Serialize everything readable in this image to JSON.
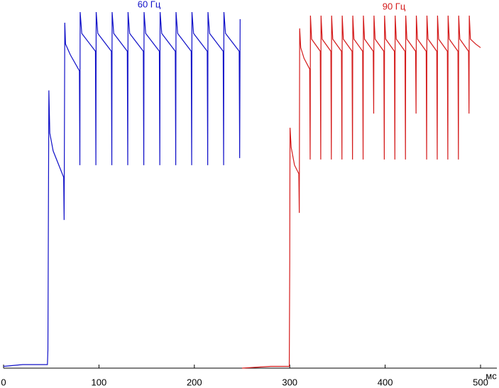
{
  "chart_data": {
    "type": "line",
    "xlabel": "мс",
    "xlim": [
      0,
      500
    ],
    "xticks": [
      0,
      100,
      200,
      300,
      400,
      500
    ],
    "ylim": [
      0,
      100
    ],
    "series": [
      {
        "name": "60 Гц",
        "color": "#1010c8",
        "x": [
          0,
          20,
          46,
          46.5,
          47.5,
          48.5,
          52,
          63,
          63.5,
          64.2,
          65,
          70,
          79.5,
          80,
          80.3,
          82,
          96.3,
          96.8,
          97.1,
          98.8,
          113,
          113.5,
          113.8,
          115.5,
          129.7,
          130.2,
          130.5,
          132.2,
          146.5,
          147,
          147.3,
          149,
          163.3,
          163.8,
          164.1,
          165.8,
          180,
          180.5,
          180.8,
          182.5,
          196.7,
          197.2,
          197.5,
          199.2,
          213.5,
          214,
          214.3,
          216,
          230.2,
          230.7,
          231,
          232.7,
          247,
          247.5,
          248
        ],
        "values": [
          0.5,
          1,
          1,
          5,
          78,
          66,
          61,
          53.6,
          41.6,
          97,
          91,
          88,
          83.5,
          57,
          100,
          94,
          89,
          57,
          100,
          94,
          89,
          57,
          100,
          94,
          89,
          57,
          100,
          94,
          89,
          57,
          100,
          94,
          89,
          57,
          100,
          94,
          89,
          57,
          100,
          94,
          89,
          57,
          100,
          94,
          89,
          57,
          100,
          94,
          89,
          57,
          100,
          94,
          89,
          59,
          98
        ]
      },
      {
        "name": "90 Гц",
        "color": "#d41a1a",
        "x": [
          250,
          280,
          299.5,
          300,
          300.3,
          301.5,
          305,
          309.5,
          310,
          310.4,
          311.5,
          315,
          320.9,
          321.4,
          321.7,
          322.9,
          332,
          332.5,
          332.8,
          334,
          343.1,
          343.6,
          343.9,
          345.1,
          354.2,
          354.7,
          355,
          356.2,
          365.3,
          365.8,
          366.1,
          367.3,
          376.4,
          376.9,
          377.2,
          378.4,
          387.5,
          388,
          388.3,
          389.5,
          398.6,
          399.1,
          399.4,
          400.6,
          409.7,
          410.2,
          410.5,
          411.7,
          420.8,
          421.3,
          421.6,
          422.8,
          431.9,
          432.4,
          432.7,
          433.9,
          443,
          443.5,
          443.8,
          445,
          454.1,
          454.6,
          454.9,
          456.1,
          465.2,
          465.7,
          466,
          467.2,
          476.3,
          476.8,
          477.1,
          478.3,
          487.4,
          487.9,
          488.2,
          489.4,
          495,
          500
        ],
        "values": [
          0,
          0.5,
          0.5,
          30,
          67.5,
          62,
          57,
          54.6,
          43.6,
          95.4,
          90,
          87,
          84,
          58.6,
          99,
          92.4,
          89,
          58.6,
          99,
          92.4,
          89,
          58.6,
          99,
          92.4,
          89,
          58.6,
          99,
          92.4,
          89,
          58.6,
          99,
          92.4,
          89,
          58.6,
          99,
          92.4,
          89,
          71.5,
          99,
          92.4,
          89,
          58.6,
          99,
          92.4,
          89,
          58.6,
          99,
          92.4,
          89,
          58.6,
          99,
          92.4,
          89,
          71.5,
          99,
          92.4,
          89,
          58.6,
          99,
          92.4,
          89,
          58.6,
          99,
          92.4,
          89,
          58.6,
          99,
          92.4,
          89,
          58.6,
          99,
          92.4,
          89,
          71.5,
          99,
          92.4,
          91,
          90
        ]
      }
    ]
  }
}
